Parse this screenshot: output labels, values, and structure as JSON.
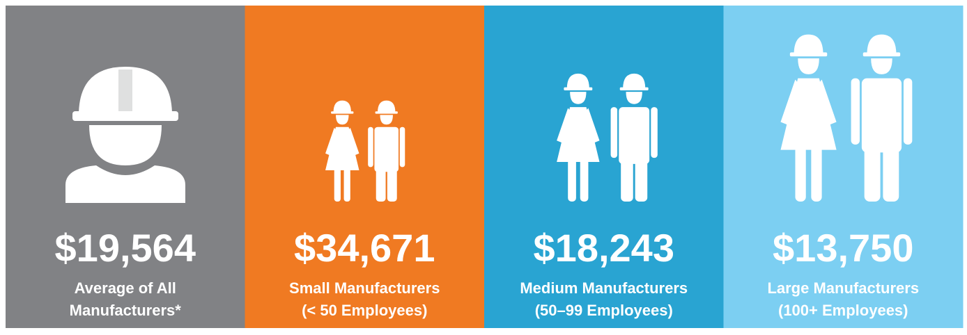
{
  "panels": [
    {
      "value": "$19,564",
      "label": [
        "Average of All",
        "Manufacturers*"
      ],
      "color": "#818285"
    },
    {
      "value": "$34,671",
      "label": [
        "Small Manufacturers",
        "(< 50 Employees)"
      ],
      "color": "#f07a22"
    },
    {
      "value": "$18,243",
      "label": [
        "Medium Manufacturers",
        "(50–99 Employees)"
      ],
      "color": "#29a4d2"
    },
    {
      "value": "$13,750",
      "label": [
        "Large Manufacturers",
        "(100+ Employees)"
      ],
      "color": "#7ccff2"
    }
  ]
}
